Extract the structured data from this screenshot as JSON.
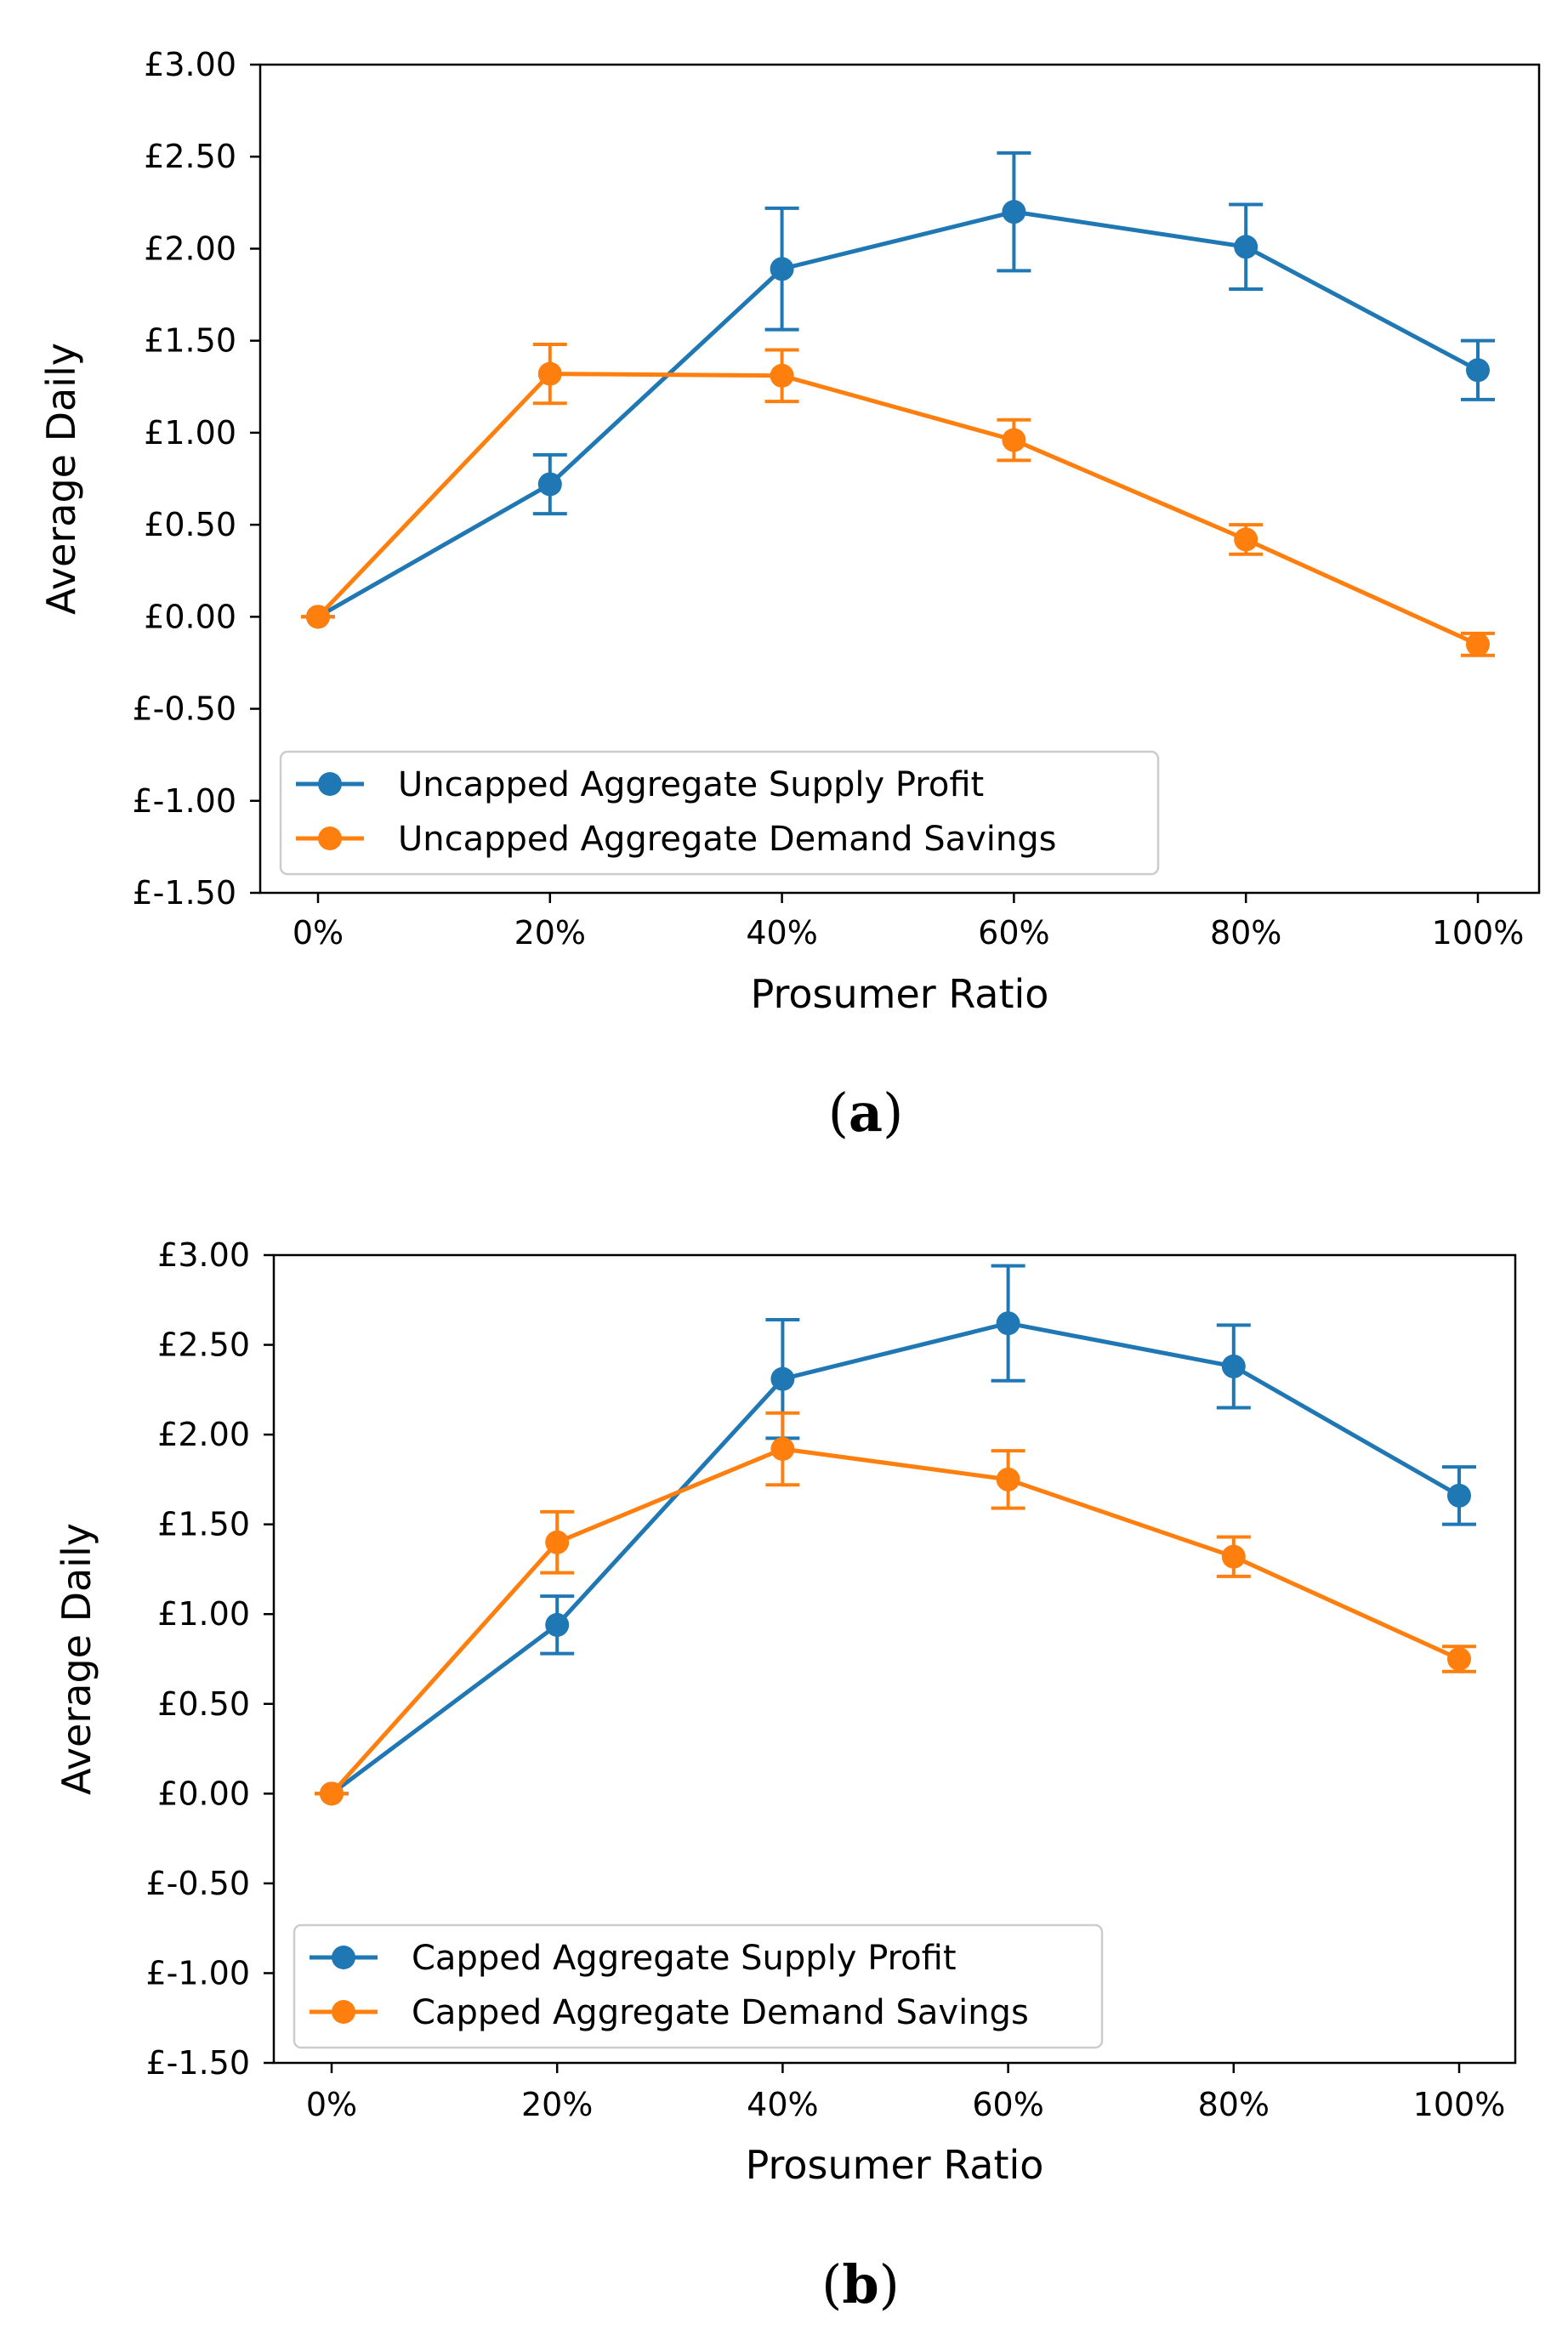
{
  "chart_data": [
    {
      "type": "line",
      "panel_label": {
        "open": "(",
        "letter": "a",
        "close": ")"
      },
      "xlabel": "Prosumer Ratio",
      "ylabel": "Average Daily",
      "categories": [
        "0%",
        "20%",
        "40%",
        "60%",
        "80%",
        "100%"
      ],
      "ylim": [
        -1.5,
        3.0
      ],
      "yticks": [
        -1.5,
        -1.0,
        -0.5,
        0.0,
        0.5,
        1.0,
        1.5,
        2.0,
        2.5,
        3.0
      ],
      "ytick_labels": [
        "£-1.50",
        "£-1.00",
        "£-0.50",
        "£0.00",
        "£0.50",
        "£1.00",
        "£1.50",
        "£2.00",
        "£2.50",
        "£3.00"
      ],
      "legend_position": "lower-left",
      "series": [
        {
          "name": "Uncapped Aggregate Supply Profit",
          "color": "#1f77b4",
          "values": [
            0.0,
            0.72,
            1.89,
            2.2,
            2.01,
            1.34
          ],
          "errors": [
            0.0,
            0.16,
            0.33,
            0.32,
            0.23,
            0.16
          ]
        },
        {
          "name": "Uncapped Aggregate Demand Savings",
          "color": "#ff7f0e",
          "values": [
            0.0,
            1.32,
            1.31,
            0.96,
            0.42,
            -0.15
          ],
          "errors": [
            0.0,
            0.16,
            0.14,
            0.11,
            0.08,
            0.06
          ]
        }
      ]
    },
    {
      "type": "line",
      "panel_label": {
        "open": "(",
        "letter": "b",
        "close": ")"
      },
      "xlabel": "Prosumer Ratio",
      "ylabel": "Average Daily",
      "categories": [
        "0%",
        "20%",
        "40%",
        "60%",
        "80%",
        "100%"
      ],
      "ylim": [
        -1.5,
        3.0
      ],
      "yticks": [
        -1.5,
        -1.0,
        -0.5,
        0.0,
        0.5,
        1.0,
        1.5,
        2.0,
        2.5,
        3.0
      ],
      "ytick_labels": [
        "£-1.50",
        "£-1.00",
        "£-0.50",
        "£0.00",
        "£0.50",
        "£1.00",
        "£1.50",
        "£2.00",
        "£2.50",
        "£3.00"
      ],
      "legend_position": "lower-left",
      "series": [
        {
          "name": "Capped Aggregate Supply Profit",
          "color": "#1f77b4",
          "values": [
            0.0,
            0.94,
            2.31,
            2.62,
            2.38,
            1.66
          ],
          "errors": [
            0.0,
            0.16,
            0.33,
            0.32,
            0.23,
            0.16
          ]
        },
        {
          "name": "Capped Aggregate Demand Savings",
          "color": "#ff7f0e",
          "values": [
            0.0,
            1.4,
            1.92,
            1.75,
            1.32,
            0.75
          ],
          "errors": [
            0.0,
            0.17,
            0.2,
            0.16,
            0.11,
            0.07
          ]
        }
      ]
    }
  ]
}
